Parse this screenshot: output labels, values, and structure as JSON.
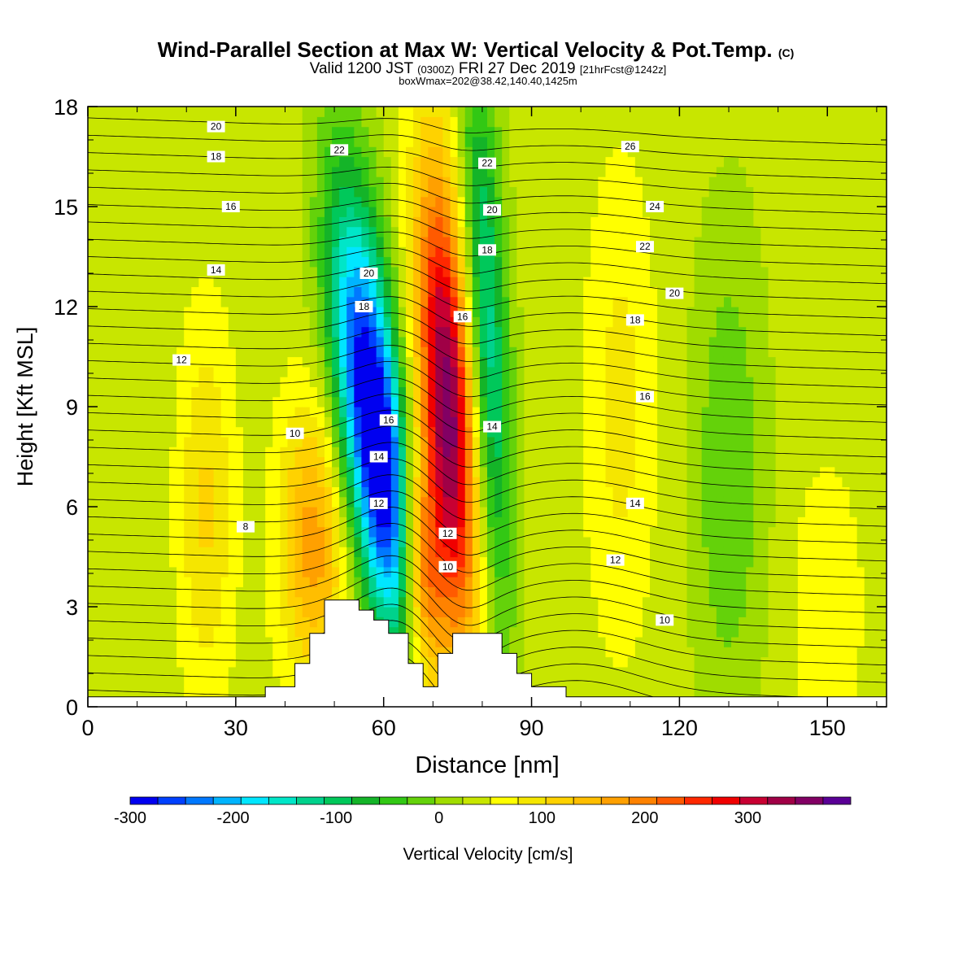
{
  "chart_data": {
    "type": "heatmap",
    "title": "Wind-Parallel Section at Max W: Vertical Velocity & Pot.Temp.",
    "title_mark": "(C)",
    "subtitle_main": "Valid 1200 JST",
    "subtitle_z": "(0300Z)",
    "subtitle_date": "FRI 27 Dec 2019",
    "subtitle_fcst": "[21hrFcst@1242z]",
    "subtitle_box": "boxWmax=202@38.42,140.40,1425m",
    "xlabel": "Distance [nm]",
    "ylabel": "Height [Kft MSL]",
    "xlim": [
      0,
      162
    ],
    "ylim": [
      0,
      18
    ],
    "x_ticks": [
      "0",
      "30",
      "60",
      "90",
      "120",
      "150"
    ],
    "y_ticks": [
      "0",
      "3",
      "6",
      "9",
      "12",
      "15",
      "18"
    ],
    "colorbar": {
      "label": "Vertical Velocity [cm/s]",
      "min": -300,
      "max": 375,
      "step": 25,
      "tick_labels": [
        "-300",
        "-200",
        "-100",
        "0",
        "100",
        "200",
        "300"
      ],
      "colors": [
        "#0000f0",
        "#0040ff",
        "#0078ff",
        "#00b4ff",
        "#00e6ff",
        "#00e6c8",
        "#00d28c",
        "#00c85a",
        "#14b428",
        "#32c814",
        "#64d20a",
        "#a0dc00",
        "#c8e600",
        "#ffff00",
        "#f5e600",
        "#ffd200",
        "#ffbe00",
        "#ffa000",
        "#ff8200",
        "#ff5a00",
        "#ff2800",
        "#f00000",
        "#c80032",
        "#a00046",
        "#820064",
        "#5a0096"
      ]
    },
    "w_features": [
      {
        "x": 56,
        "z": 9.5,
        "value": -280,
        "sx": 4.5,
        "sz": 4.5,
        "tilt": 0.55
      },
      {
        "x": 62,
        "z": 6,
        "value": -180,
        "sx": 3.5,
        "sz": 3.5,
        "tilt": 0.55
      },
      {
        "x": 73,
        "z": 9,
        "value": 310,
        "sx": 4,
        "sz": 5,
        "tilt": 0.35
      },
      {
        "x": 67,
        "z": 4,
        "value": 180,
        "sx": 3,
        "sz": 2.5,
        "tilt": 0.4
      },
      {
        "x": 81,
        "z": 11,
        "value": -160,
        "sx": 3,
        "sz": 6,
        "tilt": 0.3
      },
      {
        "x": 46,
        "z": 5,
        "value": 130,
        "sx": 5,
        "sz": 3,
        "tilt": 0
      },
      {
        "x": 24,
        "z": 6,
        "value": 70,
        "sx": 4,
        "sz": 4,
        "tilt": 0
      },
      {
        "x": 108,
        "z": 9,
        "value": 50,
        "sx": 5,
        "sz": 5,
        "tilt": 0
      },
      {
        "x": 130,
        "z": 7,
        "value": -60,
        "sx": 5,
        "sz": 5,
        "tilt": 0
      },
      {
        "x": 150,
        "z": 3,
        "value": 40,
        "sx": 5,
        "sz": 3,
        "tilt": 0
      }
    ],
    "theta_contours": [
      {
        "label": "8",
        "z_left": 5.2,
        "label_x": 32,
        "label_z": 5.4
      },
      {
        "label": "10",
        "z_left": 8.0,
        "label_x": 42,
        "label_z": 8.2
      },
      {
        "label": "12",
        "z_left": 10.2,
        "label_x": 19,
        "label_z": 10.4
      },
      {
        "label": "14",
        "z_left": 13.4,
        "label_x": 26,
        "label_z": 13.1
      },
      {
        "label": "16",
        "z_left": 15.6,
        "label_x": 29,
        "label_z": 15.0
      },
      {
        "label": "18",
        "z_left": 16.8,
        "label_x": 26,
        "label_z": 16.5
      },
      {
        "label": "20",
        "z_left": 17.6,
        "label_x": 26,
        "label_z": 17.4
      }
    ],
    "right_labels": [
      {
        "label": "22",
        "x": 51,
        "z": 16.7
      },
      {
        "label": "20",
        "x": 57,
        "z": 13.0
      },
      {
        "label": "18",
        "x": 56,
        "z": 12.0
      },
      {
        "label": "16",
        "x": 61,
        "z": 8.6
      },
      {
        "label": "14",
        "x": 59,
        "z": 7.5
      },
      {
        "label": "12",
        "x": 59,
        "z": 6.1
      },
      {
        "label": "22",
        "x": 81,
        "z": 16.3
      },
      {
        "label": "20",
        "x": 82,
        "z": 14.9
      },
      {
        "label": "18",
        "x": 81,
        "z": 13.7
      },
      {
        "label": "16",
        "x": 76,
        "z": 11.7
      },
      {
        "label": "14",
        "x": 82,
        "z": 8.4
      },
      {
        "label": "12",
        "x": 73,
        "z": 5.2
      },
      {
        "label": "10",
        "x": 73,
        "z": 4.2
      },
      {
        "label": "26",
        "x": 110,
        "z": 16.8
      },
      {
        "label": "24",
        "x": 115,
        "z": 15.0
      },
      {
        "label": "22",
        "x": 113,
        "z": 13.8
      },
      {
        "label": "20",
        "x": 119,
        "z": 12.4
      },
      {
        "label": "18",
        "x": 111,
        "z": 11.6
      },
      {
        "label": "16",
        "x": 113,
        "z": 9.3
      },
      {
        "label": "14",
        "x": 111,
        "z": 6.1
      },
      {
        "label": "12",
        "x": 107,
        "z": 4.4
      },
      {
        "label": "10",
        "x": 117,
        "z": 2.6
      }
    ],
    "terrain": [
      [
        0,
        0.3
      ],
      [
        36,
        0.3
      ],
      [
        36,
        0.6
      ],
      [
        42,
        0.6
      ],
      [
        42,
        1.3
      ],
      [
        45,
        1.3
      ],
      [
        45,
        2.2
      ],
      [
        48,
        2.2
      ],
      [
        48,
        3.2
      ],
      [
        55,
        3.2
      ],
      [
        55,
        2.9
      ],
      [
        58,
        2.9
      ],
      [
        58,
        2.6
      ],
      [
        61,
        2.6
      ],
      [
        61,
        2.2
      ],
      [
        65,
        2.2
      ],
      [
        65,
        1.3
      ],
      [
        68,
        1.3
      ],
      [
        68,
        0.6
      ],
      [
        71,
        0.6
      ],
      [
        71,
        1.6
      ],
      [
        74,
        1.6
      ],
      [
        74,
        2.2
      ],
      [
        84,
        2.2
      ],
      [
        84,
        1.6
      ],
      [
        87,
        1.6
      ],
      [
        87,
        1.0
      ],
      [
        90,
        1.0
      ],
      [
        90,
        0.6
      ],
      [
        97,
        0.6
      ],
      [
        97,
        0.3
      ],
      [
        162,
        0.3
      ]
    ]
  }
}
